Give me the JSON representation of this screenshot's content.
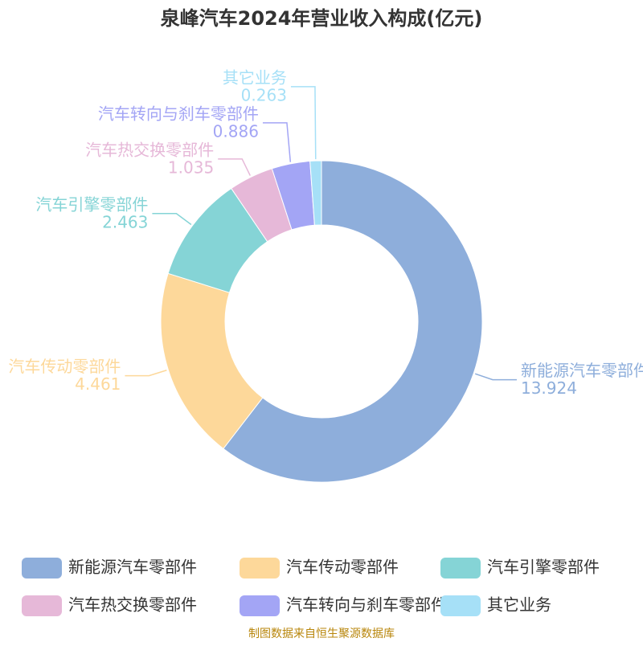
{
  "chart_data": {
    "type": "donut",
    "title": "泉峰汽车2024年营业收入构成(亿元)",
    "categories": [
      "新能源汽车零部件",
      "汽车传动零部件",
      "汽车引擎零部件",
      "汽车热交换零部件",
      "汽车转向与刹车零部件",
      "其它业务"
    ],
    "values": [
      13.924,
      4.461,
      2.463,
      1.035,
      0.886,
      0.263
    ],
    "colors": [
      "#8eaedb",
      "#fdd89a",
      "#85d4d6",
      "#e6b8d8",
      "#a3a5f5",
      "#a6e0f7"
    ],
    "source": "制图数据来自恒生聚源数据库"
  }
}
